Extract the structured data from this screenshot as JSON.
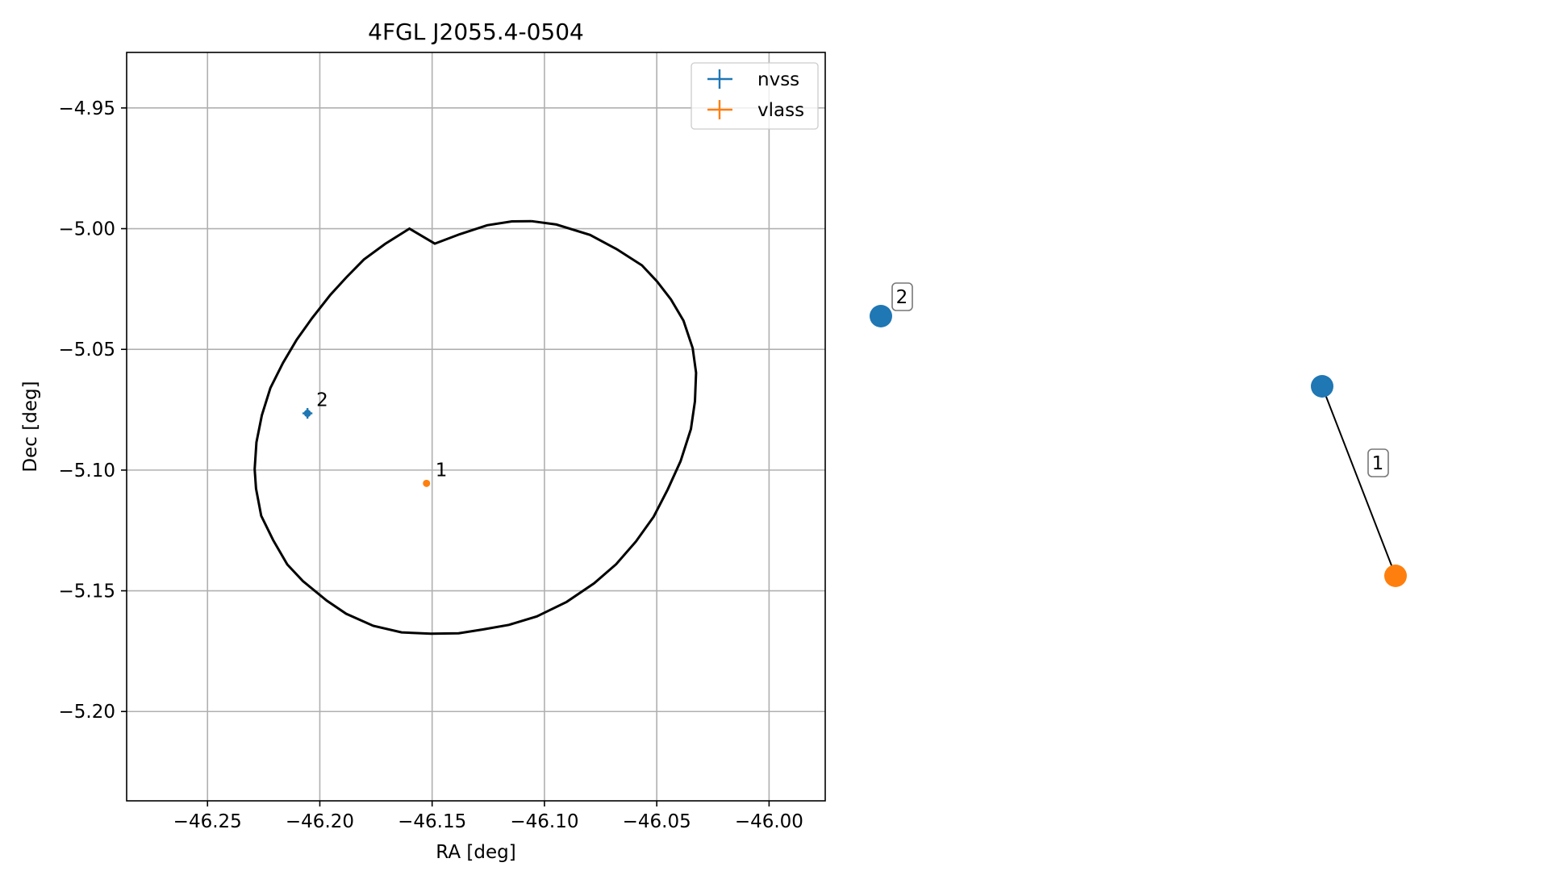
{
  "chart_data": [
    {
      "type": "scatter",
      "title": "4FGL J2055.4-0504",
      "xlabel": "RA [deg]",
      "ylabel": "Dec [deg]",
      "xlim": [
        -46.286,
        -45.975
      ],
      "ylim": [
        -5.237,
        -4.927
      ],
      "x_ticks": [
        -46.25,
        -46.2,
        -46.15,
        -46.1,
        -46.05,
        -46.0
      ],
      "x_tick_labels": [
        "−46.25",
        "−46.20",
        "−46.15",
        "−46.10",
        "−46.05",
        "−46.00"
      ],
      "y_ticks": [
        -4.95,
        -5.0,
        -5.05,
        -5.1,
        -5.15,
        -5.2
      ],
      "y_tick_labels": [
        "−4.95",
        "−5.00",
        "−5.05",
        "−5.10",
        "−5.15",
        "−5.20"
      ],
      "grid": true,
      "legend_position": "top-right",
      "series": [
        {
          "name": "nvss",
          "color": "#1f77b4",
          "points": [
            {
              "x": -46.2055,
              "y": -5.0765,
              "xerr": 0.0022,
              "yerr": 0.0022,
              "label": "2"
            }
          ]
        },
        {
          "name": "vlass",
          "color": "#ff7f0e",
          "points": [
            {
              "x": -46.1525,
              "y": -5.1055,
              "xerr": 0.0005,
              "yerr": 0.0005,
              "label": "1"
            }
          ]
        }
      ],
      "ellipse": {
        "color": "#000000",
        "points": [
          [
            -46.1058,
            -4.9969
          ],
          [
            -46.0947,
            -4.9983
          ],
          [
            -46.0797,
            -5.0026
          ],
          [
            -46.0678,
            -5.0085
          ],
          [
            -46.0566,
            -5.0152
          ],
          [
            -46.0499,
            -5.0218
          ],
          [
            -46.0437,
            -5.0293
          ],
          [
            -46.0381,
            -5.0381
          ],
          [
            -46.034,
            -5.0495
          ],
          [
            -46.0325,
            -5.0597
          ],
          [
            -46.033,
            -5.0715
          ],
          [
            -46.0348,
            -5.083
          ],
          [
            -46.0394,
            -5.0963
          ],
          [
            -46.0451,
            -5.108
          ],
          [
            -46.0514,
            -5.1193
          ],
          [
            -46.0593,
            -5.1296
          ],
          [
            -46.0681,
            -5.139
          ],
          [
            -46.0779,
            -5.1469
          ],
          [
            -46.0901,
            -5.1546
          ],
          [
            -46.1034,
            -5.1606
          ],
          [
            -46.1158,
            -5.1641
          ],
          [
            -46.1274,
            -5.166
          ],
          [
            -46.1382,
            -5.1676
          ],
          [
            -46.1505,
            -5.1678
          ],
          [
            -46.1636,
            -5.1672
          ],
          [
            -46.1762,
            -5.1645
          ],
          [
            -46.1883,
            -5.1595
          ],
          [
            -46.1969,
            -5.1541
          ],
          [
            -46.2075,
            -5.146
          ],
          [
            -46.2145,
            -5.1391
          ],
          [
            -46.2208,
            -5.129
          ],
          [
            -46.2261,
            -5.1189
          ],
          [
            -46.2284,
            -5.1077
          ],
          [
            -46.229,
            -5.0996
          ],
          [
            -46.2282,
            -5.0885
          ],
          [
            -46.2258,
            -5.0773
          ],
          [
            -46.222,
            -5.066
          ],
          [
            -46.2164,
            -5.0556
          ],
          [
            -46.2103,
            -5.046
          ],
          [
            -46.2034,
            -5.037
          ],
          [
            -46.1954,
            -5.0275
          ],
          [
            -46.1882,
            -5.0202
          ],
          [
            -46.1804,
            -5.0128
          ],
          [
            -46.1709,
            -5.0063
          ],
          [
            -46.1601,
            -5.0
          ],
          [
            -46.1488,
            -5.0062
          ],
          [
            -46.1377,
            -5.0023
          ],
          [
            -46.1255,
            -4.9986
          ],
          [
            -46.1145,
            -4.997
          ],
          [
            -46.1058,
            -4.9969
          ]
        ]
      }
    },
    {
      "type": "network",
      "nodes": [
        {
          "id": "nvss-node-a",
          "series": "nvss",
          "color": "#1f77b4",
          "label": "2"
        },
        {
          "id": "nvss-node-b",
          "series": "nvss",
          "color": "#1f77b4"
        },
        {
          "id": "vlass-node",
          "series": "vlass",
          "color": "#ff7f0e"
        }
      ],
      "edges": [
        {
          "from": "nvss-node-b",
          "to": "vlass-node",
          "label": "1"
        }
      ]
    }
  ]
}
